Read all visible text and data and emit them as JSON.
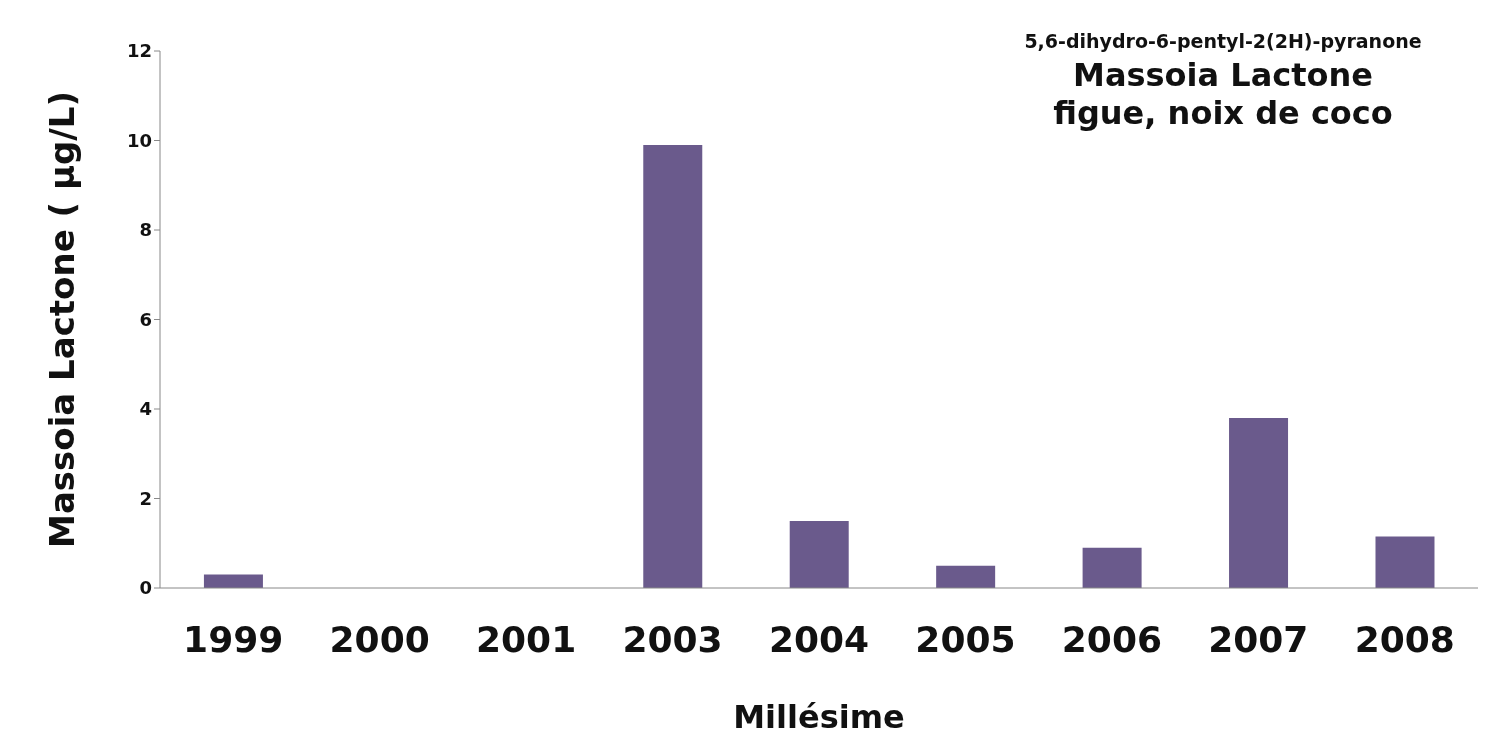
{
  "chart_data": {
    "type": "bar",
    "title": "Massoia Lactone",
    "subtitle": "figue, noix de coco",
    "annotations": [
      "5,6-dihydro-6-pentyl-2(2H)-pyranone"
    ],
    "xlabel": "Millésime",
    "ylabel": "Massoia Lactone ( µg/L)",
    "categories": [
      "1999",
      "2000",
      "2001",
      "2003",
      "2004",
      "2005",
      "2006",
      "2007",
      "2008"
    ],
    "values": [
      0.3,
      0,
      0,
      9.9,
      1.5,
      0.5,
      0.9,
      3.8,
      1.15
    ],
    "color": "#6a5a8c",
    "ylim": [
      0,
      12
    ],
    "yticks": [
      0,
      2,
      4,
      6,
      8,
      10,
      12
    ],
    "grid": false,
    "legend": false
  }
}
